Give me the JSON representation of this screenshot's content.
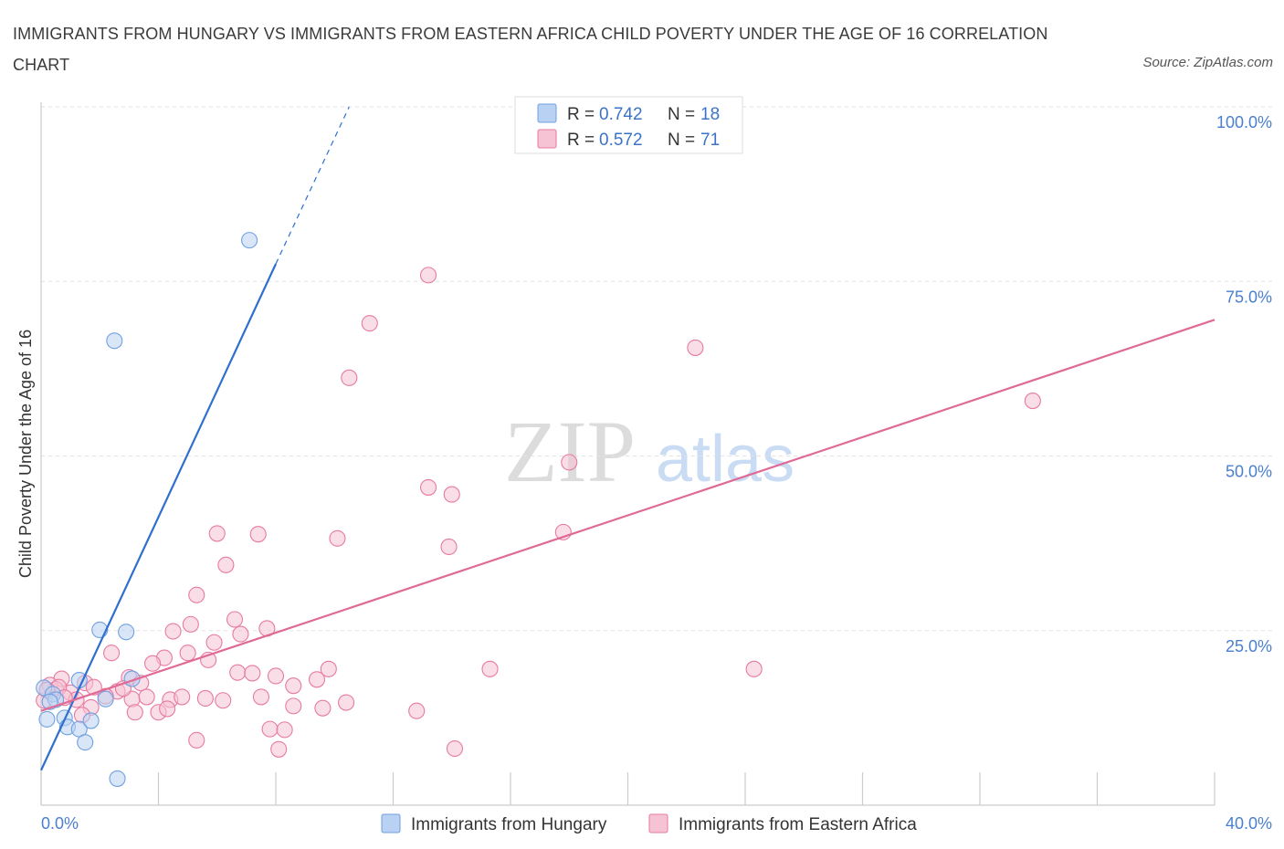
{
  "title": "IMMIGRANTS FROM HUNGARY VS IMMIGRANTS FROM EASTERN AFRICA CHILD POVERTY UNDER THE AGE OF 16 CORRELATION CHART",
  "source": "Source: ZipAtlas.com",
  "watermark": {
    "zip": "ZIP",
    "atlas": "atlas"
  },
  "colors": {
    "hungary": "#6fa0e0",
    "hungary_fill": "#b9d1f3",
    "eastern_africa": "#e77aa0",
    "eastern_africa_fill": "#f6c3d4",
    "tick": "#4a7fd0"
  },
  "legend": {
    "hungary": {
      "r_label": "R =",
      "r_value": "0.742",
      "n_label": "N =",
      "n_value": "18"
    },
    "eastern_africa": {
      "r_label": "R =",
      "r_value": "0.572",
      "n_label": "N =",
      "n_value": "71"
    }
  },
  "bottom_legend": [
    "Immigrants from Hungary",
    "Immigrants from Eastern Africa"
  ],
  "chart_data": {
    "type": "scatter",
    "xlabel": "",
    "ylabel": "Child Poverty Under the Age of 16",
    "xlim": [
      0,
      40
    ],
    "ylim": [
      0,
      100
    ],
    "x_tick_labels": [
      "0.0%",
      "40.0%"
    ],
    "y_ticks": [
      25,
      50,
      75,
      100
    ],
    "y_tick_labels": [
      "25.0%",
      "50.0%",
      "75.0%",
      "100.0%"
    ],
    "grid": true,
    "series": [
      {
        "name": "Immigrants from Hungary",
        "R": 0.742,
        "N": 18,
        "trend": {
          "x0": 0,
          "y0": 5.0,
          "x1": 8.0,
          "y1": 77.5,
          "dashed_to_x": 10.5,
          "dashed_to_y": 100
        },
        "points": [
          {
            "x": 7.1,
            "y": 80.9
          },
          {
            "x": 2.5,
            "y": 66.5
          },
          {
            "x": 2.0,
            "y": 25.1
          },
          {
            "x": 2.9,
            "y": 24.8
          },
          {
            "x": 1.3,
            "y": 17.9
          },
          {
            "x": 3.1,
            "y": 18.1
          },
          {
            "x": 0.1,
            "y": 16.8
          },
          {
            "x": 0.4,
            "y": 15.9
          },
          {
            "x": 0.5,
            "y": 15.1
          },
          {
            "x": 2.2,
            "y": 15.2
          },
          {
            "x": 0.2,
            "y": 12.3
          },
          {
            "x": 0.8,
            "y": 12.5
          },
          {
            "x": 0.9,
            "y": 11.2
          },
          {
            "x": 1.3,
            "y": 10.9
          },
          {
            "x": 1.7,
            "y": 12.1
          },
          {
            "x": 1.5,
            "y": 9.0
          },
          {
            "x": 2.6,
            "y": 3.8
          },
          {
            "x": 0.3,
            "y": 14.8
          }
        ]
      },
      {
        "name": "Immigrants from Eastern Africa",
        "R": 0.572,
        "N": 71,
        "trend": {
          "x0": 0,
          "y0": 13.5,
          "x1": 40,
          "y1": 69.5
        },
        "points": [
          {
            "x": 13.2,
            "y": 75.9
          },
          {
            "x": 11.2,
            "y": 69.0
          },
          {
            "x": 22.3,
            "y": 65.5
          },
          {
            "x": 10.5,
            "y": 61.2
          },
          {
            "x": 33.8,
            "y": 57.9
          },
          {
            "x": 18.0,
            "y": 49.1
          },
          {
            "x": 13.2,
            "y": 45.5
          },
          {
            "x": 14.0,
            "y": 44.5
          },
          {
            "x": 6.0,
            "y": 38.9
          },
          {
            "x": 7.4,
            "y": 38.8
          },
          {
            "x": 17.8,
            "y": 39.1
          },
          {
            "x": 10.1,
            "y": 38.2
          },
          {
            "x": 13.9,
            "y": 37.0
          },
          {
            "x": 6.3,
            "y": 34.4
          },
          {
            "x": 5.3,
            "y": 30.1
          },
          {
            "x": 6.6,
            "y": 26.6
          },
          {
            "x": 5.1,
            "y": 25.9
          },
          {
            "x": 4.5,
            "y": 24.9
          },
          {
            "x": 7.7,
            "y": 25.3
          },
          {
            "x": 6.8,
            "y": 24.5
          },
          {
            "x": 5.9,
            "y": 23.3
          },
          {
            "x": 2.4,
            "y": 21.8
          },
          {
            "x": 5.0,
            "y": 21.8
          },
          {
            "x": 4.2,
            "y": 21.1
          },
          {
            "x": 3.8,
            "y": 20.3
          },
          {
            "x": 5.7,
            "y": 20.8
          },
          {
            "x": 6.7,
            "y": 19.0
          },
          {
            "x": 7.2,
            "y": 18.9
          },
          {
            "x": 8.0,
            "y": 18.5
          },
          {
            "x": 9.8,
            "y": 19.5
          },
          {
            "x": 15.3,
            "y": 19.5
          },
          {
            "x": 24.3,
            "y": 19.5
          },
          {
            "x": 3.0,
            "y": 18.3
          },
          {
            "x": 3.4,
            "y": 17.5
          },
          {
            "x": 0.7,
            "y": 18.1
          },
          {
            "x": 1.5,
            "y": 17.5
          },
          {
            "x": 8.6,
            "y": 17.1
          },
          {
            "x": 9.4,
            "y": 18.0
          },
          {
            "x": 0.3,
            "y": 17.2
          },
          {
            "x": 0.5,
            "y": 16.6
          },
          {
            "x": 1.0,
            "y": 16.1
          },
          {
            "x": 2.6,
            "y": 16.3
          },
          {
            "x": 2.2,
            "y": 15.6
          },
          {
            "x": 1.2,
            "y": 15.1
          },
          {
            "x": 3.1,
            "y": 15.2
          },
          {
            "x": 3.6,
            "y": 15.5
          },
          {
            "x": 4.4,
            "y": 15.1
          },
          {
            "x": 4.8,
            "y": 15.5
          },
          {
            "x": 5.6,
            "y": 15.3
          },
          {
            "x": 7.5,
            "y": 15.5
          },
          {
            "x": 0.1,
            "y": 15.0
          },
          {
            "x": 0.6,
            "y": 16.9
          },
          {
            "x": 1.7,
            "y": 14.0
          },
          {
            "x": 3.2,
            "y": 13.3
          },
          {
            "x": 4.0,
            "y": 13.3
          },
          {
            "x": 1.4,
            "y": 12.9
          },
          {
            "x": 4.3,
            "y": 13.8
          },
          {
            "x": 8.6,
            "y": 14.2
          },
          {
            "x": 9.6,
            "y": 13.9
          },
          {
            "x": 10.4,
            "y": 14.7
          },
          {
            "x": 12.8,
            "y": 13.5
          },
          {
            "x": 7.8,
            "y": 10.9
          },
          {
            "x": 8.3,
            "y": 10.8
          },
          {
            "x": 5.3,
            "y": 9.3
          },
          {
            "x": 8.1,
            "y": 8.0
          },
          {
            "x": 14.1,
            "y": 8.1
          },
          {
            "x": 0.2,
            "y": 16.5
          },
          {
            "x": 0.8,
            "y": 15.4
          },
          {
            "x": 1.8,
            "y": 16.9
          },
          {
            "x": 2.8,
            "y": 16.7
          },
          {
            "x": 6.2,
            "y": 15.0
          }
        ]
      }
    ]
  }
}
